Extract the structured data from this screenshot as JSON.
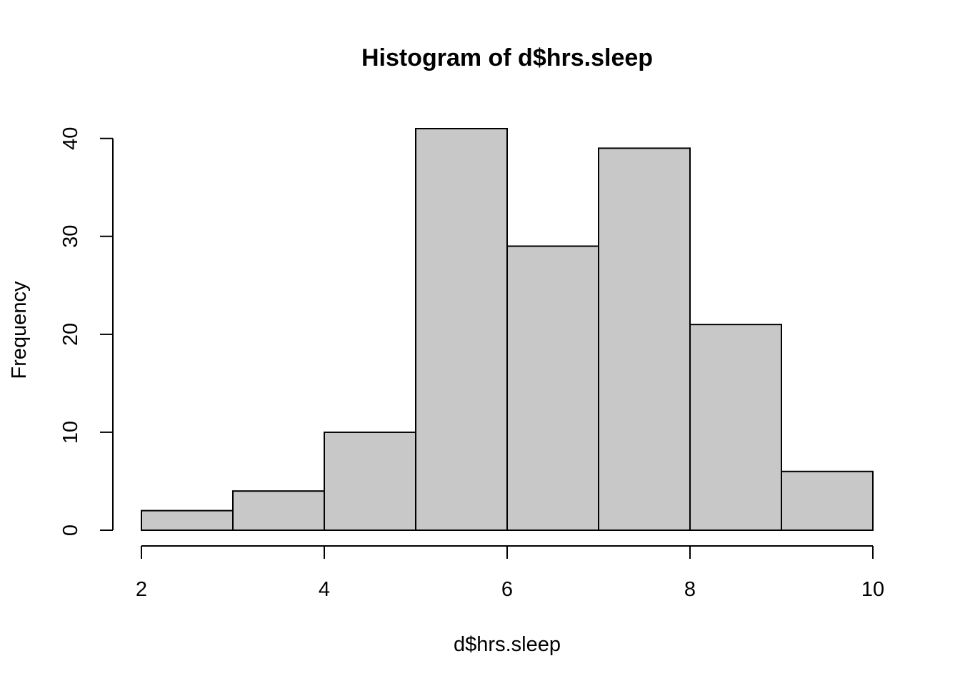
{
  "chart_data": {
    "type": "bar",
    "title": "Histogram of d$hrs.sleep",
    "xlabel": "d$hrs.sleep",
    "ylabel": "Frequency",
    "bins": [
      {
        "from": 2,
        "to": 3,
        "count": 2
      },
      {
        "from": 3,
        "to": 4,
        "count": 4
      },
      {
        "from": 4,
        "to": 5,
        "count": 10
      },
      {
        "from": 5,
        "to": 6,
        "count": 41
      },
      {
        "from": 6,
        "to": 7,
        "count": 29
      },
      {
        "from": 7,
        "to": 8,
        "count": 39
      },
      {
        "from": 8,
        "to": 9,
        "count": 21
      },
      {
        "from": 9,
        "to": 10,
        "count": 6
      }
    ],
    "xlim": [
      2,
      10
    ],
    "ylim": [
      0,
      41
    ],
    "x_ticks": [
      2,
      4,
      6,
      8,
      10
    ],
    "y_ticks": [
      0,
      10,
      20,
      30,
      40
    ],
    "grid": false,
    "bar_color": "#c8c8c8",
    "border_color": "#000000"
  }
}
